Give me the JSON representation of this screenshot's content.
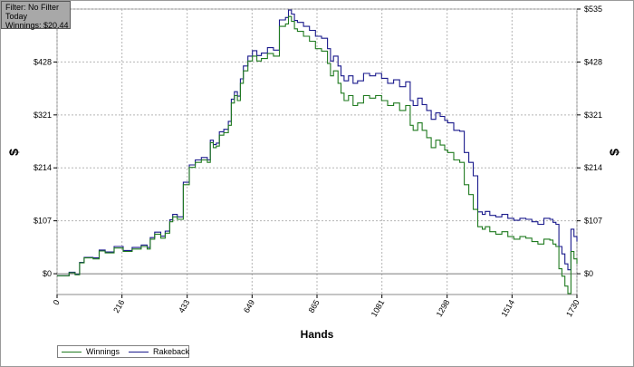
{
  "info": {
    "filter": "Filter: No Filter",
    "period": "Today",
    "winnings": "Winnings: $20.44"
  },
  "colors": {
    "winnings": "#1f7a1f",
    "rakeback": "#1a1a8c",
    "grid": "#b5b5b5",
    "zero_line": "#7a7a7a"
  },
  "chart_data": {
    "type": "line",
    "xlabel": "Hands",
    "ylabel": "$",
    "xlim": [
      0,
      1730
    ],
    "ylim": [
      -42,
      535
    ],
    "x_ticks": [
      0,
      216,
      433,
      649,
      865,
      1081,
      1298,
      1514,
      1730
    ],
    "y_ticks": [
      0,
      107,
      214,
      321,
      428,
      535
    ],
    "y_tick_labels": [
      "$0",
      "$107",
      "$214",
      "$321",
      "$428",
      "$535"
    ],
    "grid": true,
    "legend_position": "bottom-left",
    "series": [
      {
        "name": "Winnings",
        "color": "#1f7a1f",
        "x": [
          0,
          40,
          60,
          75,
          90,
          120,
          140,
          160,
          190,
          220,
          250,
          280,
          300,
          310,
          325,
          345,
          360,
          375,
          385,
          400,
          420,
          440,
          460,
          480,
          500,
          510,
          520,
          530,
          540,
          555,
          570,
          580,
          590,
          600,
          610,
          620,
          635,
          650,
          665,
          680,
          700,
          720,
          740,
          760,
          770,
          780,
          790,
          800,
          820,
          840,
          860,
          880,
          900,
          910,
          920,
          935,
          945,
          955,
          970,
          985,
          1000,
          1020,
          1040,
          1060,
          1080,
          1100,
          1120,
          1140,
          1160,
          1175,
          1185,
          1200,
          1215,
          1230,
          1245,
          1260,
          1275,
          1290,
          1300,
          1320,
          1340,
          1355,
          1370,
          1385,
          1400,
          1415,
          1425,
          1440,
          1460,
          1480,
          1500,
          1520,
          1540,
          1560,
          1580,
          1600,
          1620,
          1640,
          1650,
          1660,
          1670,
          1680,
          1690,
          1700,
          1710,
          1720,
          1730
        ],
        "y": [
          -4,
          2,
          -2,
          22,
          32,
          30,
          46,
          42,
          52,
          45,
          50,
          55,
          50,
          70,
          80,
          72,
          82,
          105,
          115,
          110,
          180,
          215,
          225,
          230,
          225,
          265,
          255,
          258,
          280,
          285,
          300,
          345,
          360,
          350,
          385,
          410,
          430,
          440,
          430,
          435,
          445,
          440,
          500,
          505,
          520,
          510,
          495,
          490,
          480,
          470,
          455,
          450,
          425,
          400,
          410,
          385,
          365,
          350,
          360,
          340,
          345,
          360,
          355,
          360,
          350,
          340,
          345,
          330,
          340,
          300,
          290,
          305,
          290,
          275,
          255,
          270,
          260,
          250,
          245,
          230,
          225,
          180,
          160,
          130,
          95,
          90,
          95,
          85,
          80,
          85,
          75,
          70,
          75,
          72,
          65,
          60,
          70,
          68,
          60,
          55,
          10,
          -5,
          -25,
          -40,
          45,
          30,
          20
        ]
      },
      {
        "name": "Rakeback",
        "color": "#1a1a8c",
        "x": [
          0,
          40,
          60,
          75,
          90,
          120,
          140,
          160,
          190,
          220,
          250,
          280,
          300,
          310,
          325,
          345,
          360,
          375,
          385,
          400,
          420,
          440,
          460,
          480,
          500,
          510,
          520,
          530,
          540,
          555,
          570,
          580,
          590,
          600,
          610,
          620,
          635,
          650,
          665,
          680,
          700,
          720,
          740,
          760,
          770,
          780,
          790,
          800,
          820,
          840,
          860,
          880,
          900,
          910,
          920,
          935,
          945,
          955,
          970,
          985,
          1000,
          1020,
          1040,
          1060,
          1080,
          1100,
          1120,
          1140,
          1160,
          1175,
          1185,
          1200,
          1215,
          1230,
          1245,
          1260,
          1275,
          1290,
          1300,
          1320,
          1340,
          1355,
          1370,
          1385,
          1400,
          1415,
          1425,
          1440,
          1460,
          1480,
          1500,
          1520,
          1540,
          1560,
          1580,
          1600,
          1620,
          1640,
          1650,
          1660,
          1670,
          1680,
          1690,
          1700,
          1710,
          1720,
          1730
        ],
        "y": [
          -4,
          3,
          -1,
          23,
          33,
          32,
          48,
          44,
          55,
          47,
          53,
          58,
          53,
          73,
          84,
          76,
          86,
          109,
          120,
          115,
          185,
          220,
          230,
          235,
          230,
          270,
          261,
          264,
          287,
          292,
          308,
          353,
          368,
          359,
          394,
          420,
          440,
          451,
          441,
          446,
          457,
          452,
          513,
          518,
          533,
          525,
          512,
          508,
          500,
          492,
          480,
          476,
          455,
          430,
          440,
          420,
          400,
          390,
          400,
          385,
          390,
          405,
          400,
          405,
          395,
          385,
          392,
          378,
          388,
          350,
          340,
          355,
          342,
          330,
          312,
          325,
          318,
          310,
          305,
          290,
          288,
          245,
          225,
          198,
          125,
          120,
          126,
          118,
          115,
          120,
          112,
          108,
          112,
          110,
          105,
          100,
          112,
          110,
          104,
          100,
          55,
          40,
          20,
          8,
          90,
          75,
          65
        ]
      }
    ]
  }
}
